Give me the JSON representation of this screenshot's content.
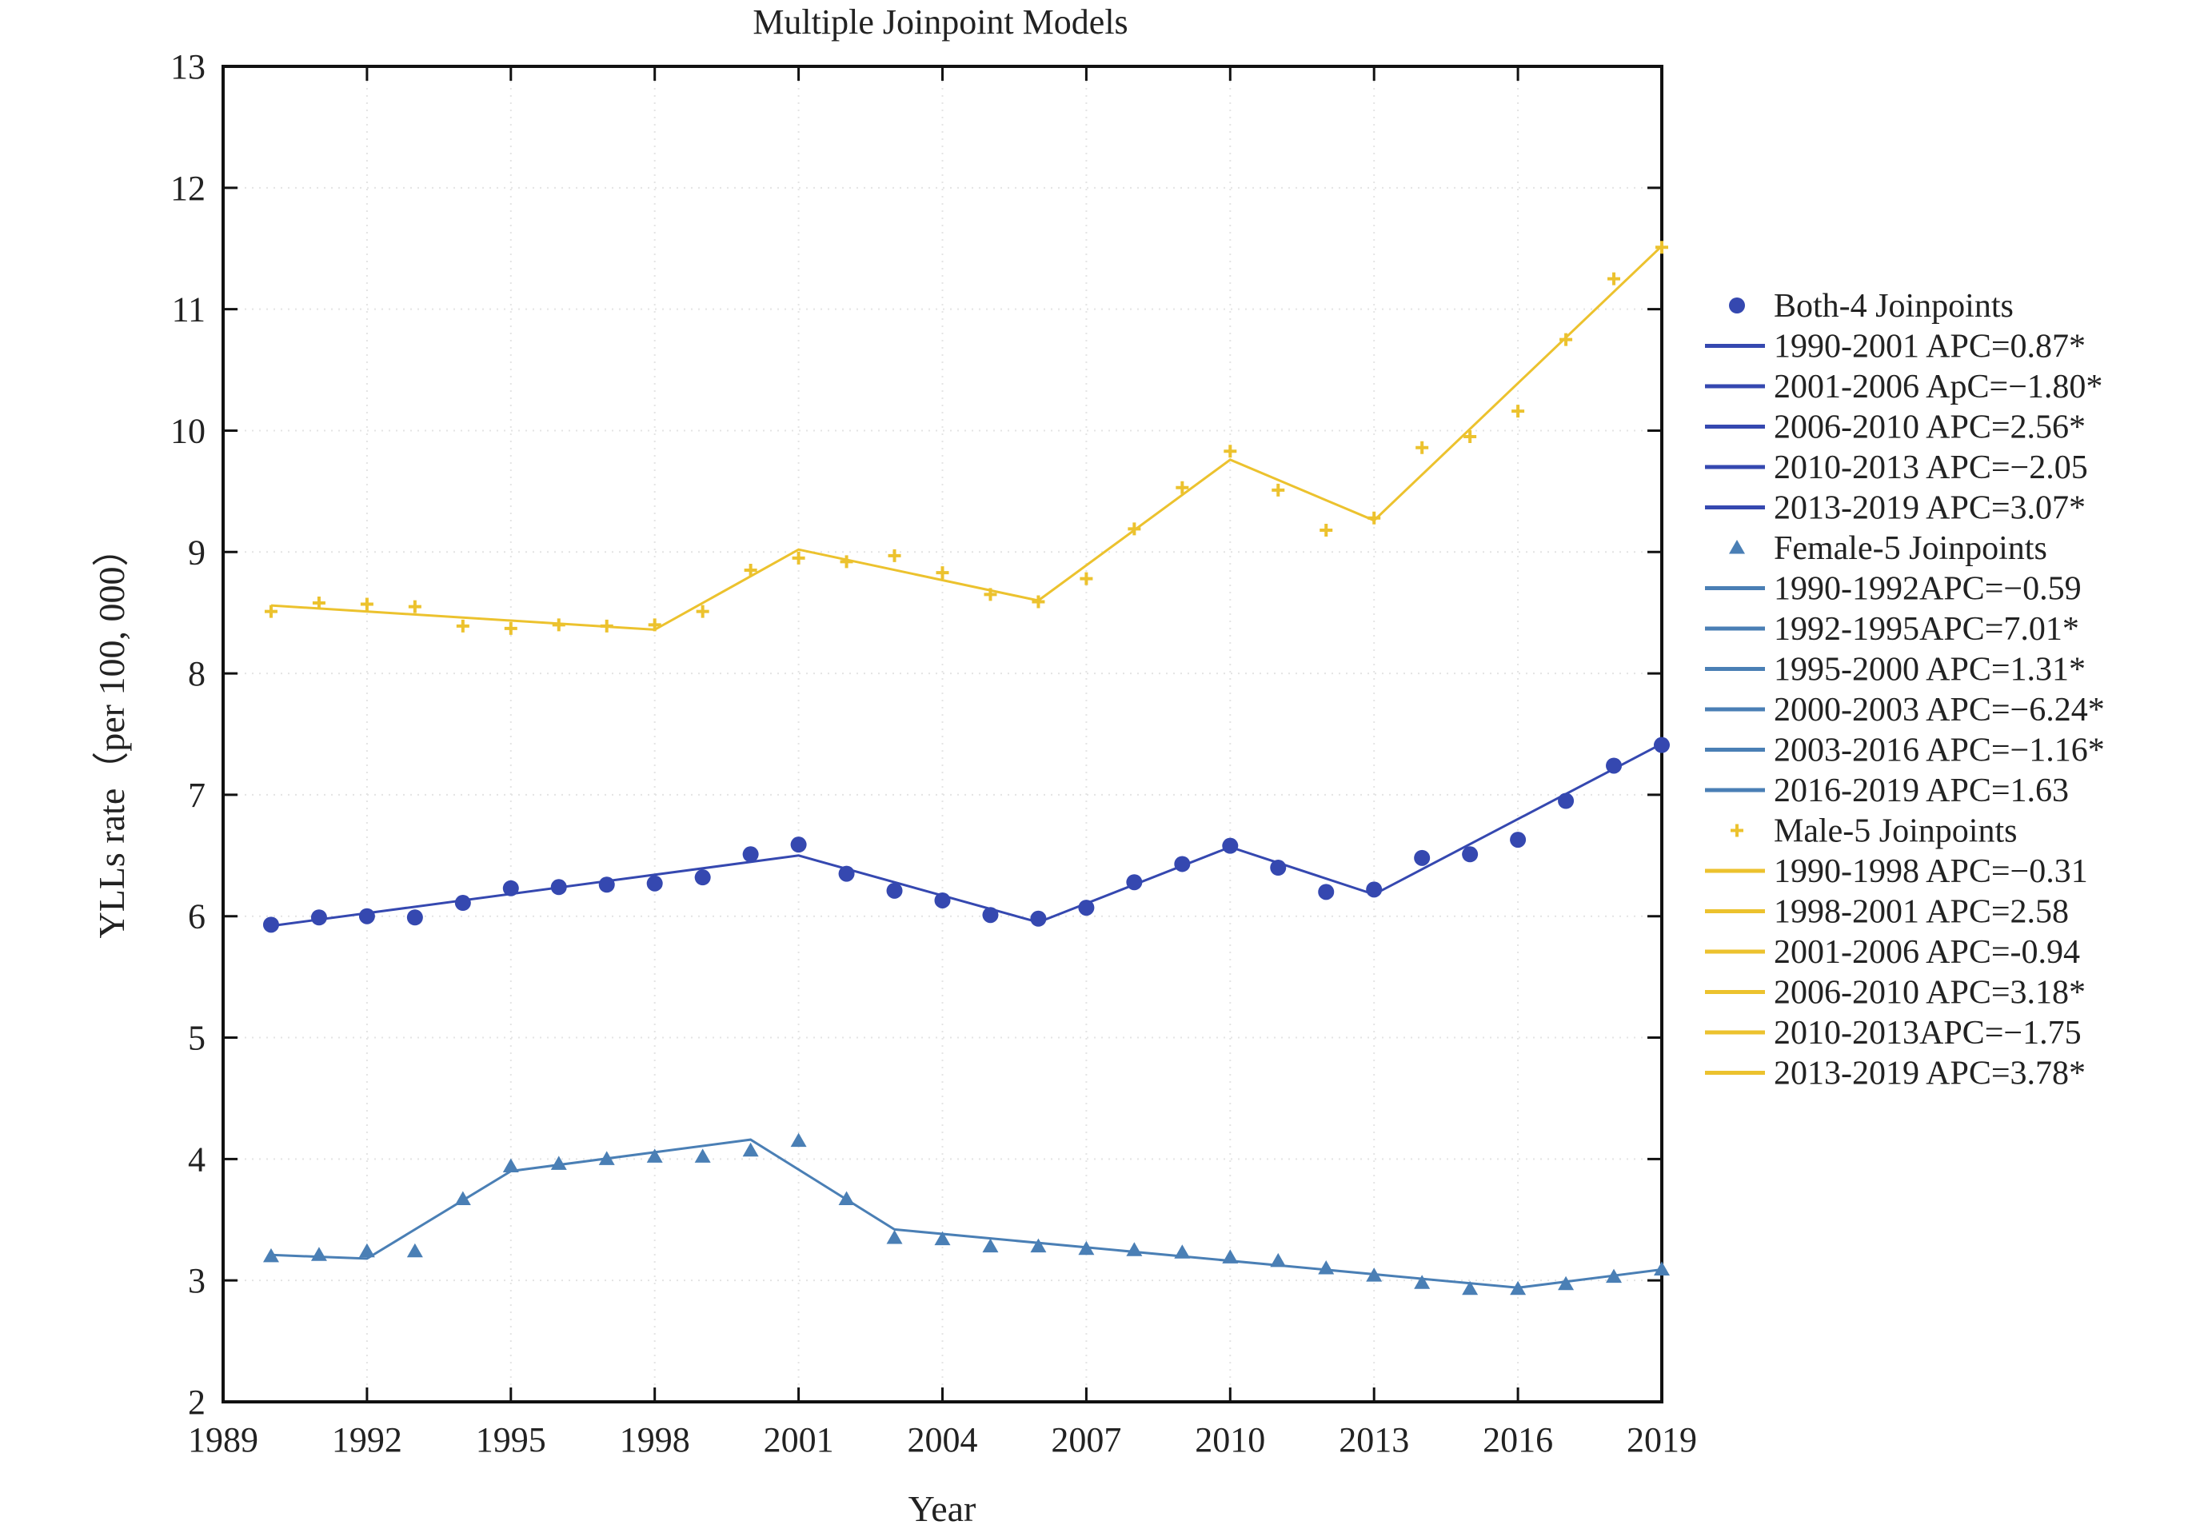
{
  "chart_data": {
    "type": "line",
    "title": "Multiple Joinpoint Models",
    "xlabel": "Year",
    "ylabel": "YLLs rate（per 100, 000）",
    "xlim": [
      1989,
      2019
    ],
    "ylim": [
      2,
      13
    ],
    "x_ticks": [
      1989,
      1992,
      1995,
      1998,
      2001,
      2004,
      2007,
      2010,
      2013,
      2016,
      2019
    ],
    "y_ticks": [
      2,
      3,
      4,
      5,
      6,
      7,
      8,
      9,
      10,
      11,
      12,
      13
    ],
    "grid": "dotted",
    "legend_position": "right",
    "series": [
      {
        "name": "Both-4 Joinpoints",
        "color": "#3548b0",
        "marker": "circle",
        "x": [
          1990,
          1991,
          1992,
          1993,
          1994,
          1995,
          1996,
          1997,
          1998,
          1999,
          2000,
          2001,
          2002,
          2003,
          2004,
          2005,
          2006,
          2007,
          2008,
          2009,
          2010,
          2011,
          2012,
          2013,
          2014,
          2015,
          2016,
          2017,
          2018,
          2019
        ],
        "observed": [
          5.93,
          5.99,
          6.0,
          5.99,
          6.11,
          6.23,
          6.24,
          6.26,
          6.27,
          6.32,
          6.51,
          6.59,
          6.35,
          6.21,
          6.13,
          6.01,
          5.98,
          6.07,
          6.28,
          6.43,
          6.58,
          6.4,
          6.2,
          6.22,
          6.48,
          6.51,
          6.63,
          6.95,
          7.24,
          7.41
        ],
        "fit": {
          "x": [
            1990,
            2001,
            2006,
            2010,
            2013,
            2019
          ],
          "y": [
            5.92,
            6.5,
            5.95,
            6.57,
            6.18,
            7.42
          ]
        },
        "segments": [
          "1990-2001 APC=0.87*",
          "2001-2006 ApC=−1.80*",
          "2006-2010 APC=2.56*",
          "2010-2013 APC=−2.05",
          "2013-2019 APC=3.07*"
        ]
      },
      {
        "name": "Female-5 Joinpoints",
        "color": "#4a7fb5",
        "marker": "triangle",
        "x": [
          1990,
          1991,
          1992,
          1993,
          1994,
          1995,
          1996,
          1997,
          1998,
          1999,
          2000,
          2001,
          2002,
          2003,
          2004,
          2005,
          2006,
          2007,
          2008,
          2009,
          2010,
          2011,
          2012,
          2013,
          2014,
          2015,
          2016,
          2017,
          2018,
          2019
        ],
        "observed": [
          3.2,
          3.21,
          3.24,
          3.24,
          3.67,
          3.94,
          3.96,
          4.0,
          4.02,
          4.02,
          4.07,
          4.15,
          3.67,
          3.35,
          3.34,
          3.28,
          3.28,
          3.26,
          3.25,
          3.23,
          3.19,
          3.16,
          3.1,
          3.04,
          2.98,
          2.93,
          2.93,
          2.97,
          3.03,
          3.09
        ],
        "fit": {
          "x": [
            1990,
            1992,
            1995,
            2000,
            2003,
            2016,
            2019
          ],
          "y": [
            3.21,
            3.18,
            3.9,
            4.16,
            3.42,
            2.94,
            3.09
          ]
        },
        "segments": [
          "1990-1992APC=−0.59",
          "1992-1995APC=7.01*",
          "1995-2000 APC=1.31*",
          "2000-2003 APC=−6.24*",
          "2003-2016 APC=−1.16*",
          "2016-2019 APC=1.63"
        ]
      },
      {
        "name": "Male-5 Joinpoints",
        "color": "#ecc22e",
        "marker": "plus",
        "x": [
          1990,
          1991,
          1992,
          1993,
          1994,
          1995,
          1996,
          1997,
          1998,
          1999,
          2000,
          2001,
          2002,
          2003,
          2004,
          2005,
          2006,
          2007,
          2008,
          2009,
          2010,
          2011,
          2012,
          2013,
          2014,
          2015,
          2016,
          2017,
          2018,
          2019
        ],
        "observed": [
          8.51,
          8.58,
          8.57,
          8.55,
          8.39,
          8.37,
          8.4,
          8.39,
          8.4,
          8.51,
          8.85,
          8.95,
          8.92,
          8.97,
          8.83,
          8.65,
          8.59,
          8.78,
          9.19,
          9.53,
          9.83,
          9.51,
          9.18,
          9.28,
          9.86,
          9.95,
          10.16,
          10.75,
          11.25,
          11.51
        ],
        "fit": {
          "x": [
            1990,
            1998,
            2001,
            2006,
            2010,
            2013,
            2019
          ],
          "y": [
            8.56,
            8.36,
            9.02,
            8.6,
            9.76,
            9.26,
            11.52
          ]
        },
        "segments": [
          "1990-1998 APC=−0.31",
          "1998-2001 APC=2.58",
          "2001-2006 APC=-0.94",
          "2006-2010 APC=3.18*",
          "2010-2013APC=−1.75",
          "2013-2019 APC=3.78*"
        ]
      }
    ]
  }
}
